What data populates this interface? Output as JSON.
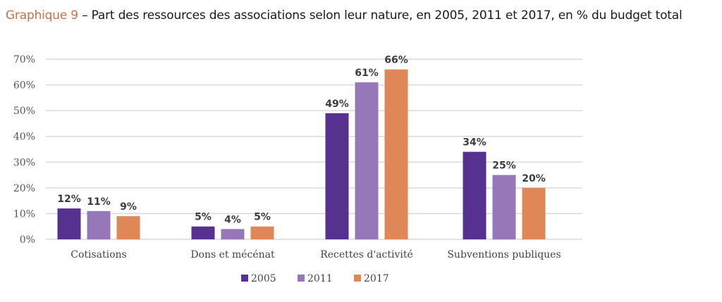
{
  "title": {
    "prefix": "Graphique 9",
    "text": " – Part des ressources des associations selon leur nature, en 2005, 2011 et 2017, en % du budget total"
  },
  "chart_data": {
    "type": "bar",
    "title": "Graphique 9 – Part des ressources des associations selon leur nature, en 2005, 2011 et 2017, en % du budget total",
    "xlabel": "",
    "ylabel": "",
    "categories": [
      "Cotisations",
      "Dons et mécénat",
      "Recettes d'activité",
      "Subventions publiques"
    ],
    "series": [
      {
        "name": "2005",
        "color": "#56318f",
        "values": [
          12,
          5,
          49,
          34
        ],
        "labels": [
          "12%",
          "5%",
          "49%",
          "34%"
        ]
      },
      {
        "name": "2011",
        "color": "#9678b9",
        "values": [
          11,
          4,
          61,
          25
        ],
        "labels": [
          "11%",
          "4%",
          "61%",
          "25%"
        ]
      },
      {
        "name": "2017",
        "color": "#e08758",
        "values": [
          9,
          5,
          66,
          20
        ],
        "labels": [
          "9%",
          "5%",
          "66%",
          "20%"
        ]
      }
    ],
    "ylim": [
      0,
      70
    ],
    "yticks": [
      0,
      10,
      20,
      30,
      40,
      50,
      60,
      70
    ],
    "ytick_labels": [
      "0%",
      "10%",
      "20%",
      "30%",
      "40%",
      "50%",
      "60%",
      "70%"
    ],
    "grid": true,
    "legend_position": "bottom-center"
  }
}
